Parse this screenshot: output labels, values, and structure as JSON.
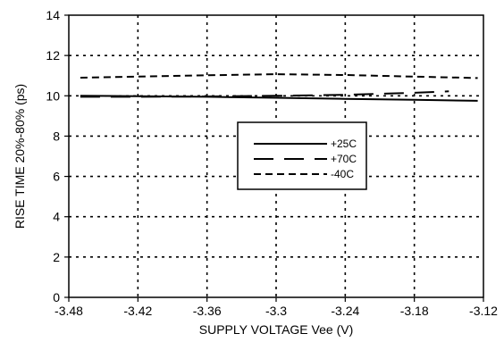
{
  "chart_data": {
    "type": "line",
    "xlabel": "SUPPLY VOLTAGE Vee (V)",
    "ylabel": "RISE TIME 20%-80% (ps)",
    "xlim": [
      -3.48,
      -3.12
    ],
    "ylim": [
      0,
      14
    ],
    "xticks": [
      "-3.48",
      "-3.42",
      "-3.36",
      "-3.3",
      "-3.24",
      "-3.18",
      "-3.12"
    ],
    "yticks": [
      "0",
      "2",
      "4",
      "6",
      "8",
      "10",
      "12",
      "14"
    ],
    "grid": true,
    "legend_position": "center-right",
    "series": [
      {
        "name": "+25C",
        "style": "solid",
        "x": [
          -3.47,
          -3.42,
          -3.36,
          -3.3,
          -3.24,
          -3.18,
          -3.125
        ],
        "y": [
          10.0,
          9.98,
          9.95,
          9.9,
          9.85,
          9.8,
          9.75
        ]
      },
      {
        "name": "+70C",
        "style": "long-dash",
        "x": [
          -3.47,
          -3.42,
          -3.36,
          -3.3,
          -3.24,
          -3.18,
          -3.15
        ],
        "y": [
          9.95,
          9.95,
          9.97,
          10.0,
          10.05,
          10.15,
          10.22
        ]
      },
      {
        "name": "-40C",
        "style": "short-dash",
        "x": [
          -3.47,
          -3.42,
          -3.36,
          -3.3,
          -3.24,
          -3.18,
          -3.125
        ],
        "y": [
          10.9,
          10.95,
          11.02,
          11.07,
          11.03,
          10.95,
          10.88
        ]
      }
    ]
  }
}
